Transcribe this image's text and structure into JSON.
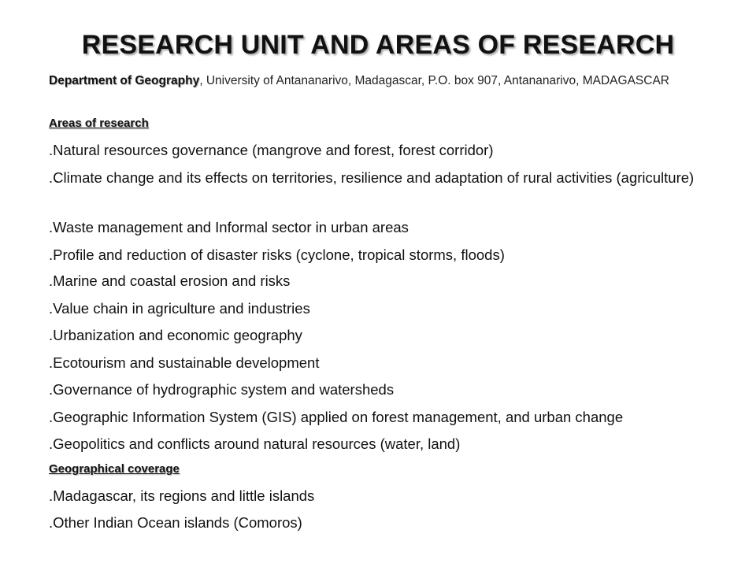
{
  "title": "RESEARCH UNIT AND AREAS OF RESEARCH",
  "affiliation": {
    "department": "Department of Geography",
    "rest": ", University of Antananarivo, Madagascar, P.O. box 907, Antananarivo, MADAGASCAR"
  },
  "areas_heading": "Areas of research",
  "areas": [
    ".Natural resources governance (mangrove and forest, forest corridor)",
    ".Climate change and its effects on territories, resilience and adaptation of rural activities (agriculture)",
    ".Waste management and Informal sector in urban areas",
    ".Profile and reduction of disaster risks (cyclone, tropical storms, floods)",
    ".Marine and coastal erosion and risks",
    ".Value chain in agriculture and industries",
    ".Urbanization and economic geography",
    ".Ecotourism and sustainable development",
    ".Governance of hydrographic system and watersheds",
    ".Geographic Information System (GIS) applied on forest management, and urban change",
    ".Geopolitics and conflicts around natural resources (water, land)"
  ],
  "coverage_heading": "Geographical  coverage",
  "coverage": [
    ".Madagascar, its regions and little islands",
    ".Other Indian Ocean islands (Comoros)"
  ]
}
